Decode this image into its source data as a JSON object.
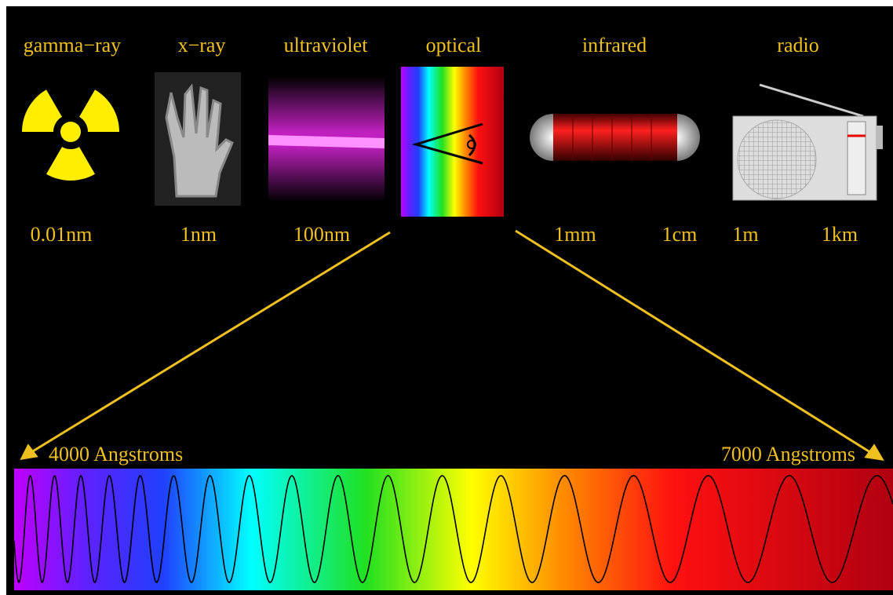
{
  "bands": [
    {
      "label": "gamma−ray"
    },
    {
      "label": "x−ray"
    },
    {
      "label": "ultraviolet"
    },
    {
      "label": "optical"
    },
    {
      "label": "infrared"
    },
    {
      "label": "radio"
    }
  ],
  "wavelengths": [
    "0.01nm",
    "1nm",
    "100nm",
    "1mm",
    "1cm",
    "1m",
    "1km"
  ],
  "optical_range": {
    "start": "4000 Angstroms",
    "end": "7000 Angstroms"
  }
}
